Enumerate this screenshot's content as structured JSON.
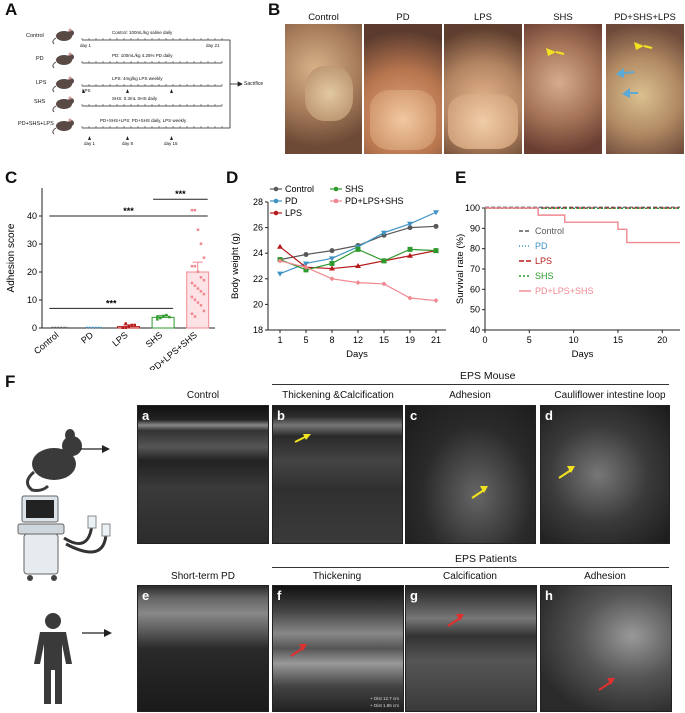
{
  "panels": {
    "A": "A",
    "B": "B",
    "C": "C",
    "D": "D",
    "E": "E",
    "F": "F"
  },
  "panelA": {
    "rows": [
      {
        "group": "Control",
        "protocol": "Control: 100mL/kg saline daily",
        "start": "day 1",
        "end": "day 21"
      },
      {
        "group": "PD",
        "protocol": "PD: 100mL/kg 4.25% PD daily"
      },
      {
        "group": "LPS",
        "protocol": "LPS: 4mg/kg LPS weekly",
        "note": "LPS"
      },
      {
        "group": "SHS",
        "protocol": "SHS: 0.3mL SHS daily"
      },
      {
        "group": "PD+SHS+LPS",
        "protocol": "PD+SHS+LPS: PD+SHS daily, LPS weekly",
        "days": [
          "day 1",
          "day 8",
          "day 15"
        ]
      }
    ],
    "endpoint": "Sacrifice"
  },
  "panelB": {
    "titles": [
      "Control",
      "PD",
      "LPS",
      "SHS",
      "PD+SHS+LPS"
    ]
  },
  "colors": {
    "control": "#595959",
    "pd": "#3f93c4",
    "lps": "#b71c1c",
    "shs": "#2e9a2e",
    "combo": "#f08891"
  },
  "chart_data": [
    {
      "type": "bar",
      "ylabel": "Adhesion score",
      "ylim": [
        0,
        50
      ],
      "yticks": [
        0,
        10,
        20,
        30,
        40
      ],
      "categories": [
        "Control",
        "PD",
        "LPS",
        "SHS",
        "PD+LPS+SHS"
      ],
      "values": [
        0,
        0,
        0.5,
        3.8,
        20
      ],
      "significance": [
        "***",
        "***",
        "***"
      ]
    },
    {
      "type": "line",
      "xlabel": "Days",
      "ylabel": "Body weight (g)",
      "x": [
        1,
        5,
        8,
        12,
        15,
        19,
        21
      ],
      "ylim": [
        18,
        28
      ],
      "yticks": [
        18,
        20,
        22,
        24,
        26,
        28
      ],
      "series": [
        {
          "name": "Control",
          "values": [
            23.5,
            23.9,
            24.2,
            24.6,
            25.4,
            26.0,
            26.1
          ]
        },
        {
          "name": "PD",
          "values": [
            22.4,
            23.2,
            23.6,
            24.5,
            25.6,
            26.3,
            27.2
          ]
        },
        {
          "name": "LPS",
          "values": [
            24.5,
            22.9,
            22.8,
            23.0,
            23.4,
            23.8,
            24.2
          ]
        },
        {
          "name": "SHS",
          "values": [
            23.5,
            22.7,
            23.2,
            24.3,
            23.4,
            24.3,
            24.2
          ]
        },
        {
          "name": "PD+LPS+SHS",
          "values": [
            23.4,
            22.9,
            22.0,
            21.7,
            21.6,
            20.5,
            20.3
          ]
        }
      ]
    },
    {
      "type": "line",
      "xlabel": "Days",
      "ylabel": "Survival rate (%)",
      "xlim": [
        0,
        22
      ],
      "xticks": [
        0,
        5,
        10,
        15,
        20
      ],
      "ylim": [
        40,
        100
      ],
      "yticks": [
        40,
        50,
        60,
        70,
        80,
        90,
        100
      ],
      "series": [
        {
          "name": "Control",
          "values": [
            100,
            100
          ]
        },
        {
          "name": "PD",
          "values": [
            100,
            100
          ]
        },
        {
          "name": "LPS",
          "values": [
            100,
            100
          ]
        },
        {
          "name": "SHS",
          "values": [
            100,
            100
          ]
        },
        {
          "name": "PD+LPS+SHS",
          "steps": [
            [
              0,
              100
            ],
            [
              6,
              100
            ],
            [
              6,
              96.5
            ],
            [
              9,
              96.5
            ],
            [
              9,
              93
            ],
            [
              15,
              93
            ],
            [
              15,
              89.5
            ],
            [
              16,
              89.5
            ],
            [
              16,
              83
            ],
            [
              22,
              83
            ]
          ]
        }
      ]
    }
  ],
  "panelF": {
    "mouse_header": "EPS Mouse",
    "patients_header": "EPS Patients",
    "mouse_images": [
      {
        "letter": "a",
        "title": "Control"
      },
      {
        "letter": "b",
        "title": "Thickening &Calcification"
      },
      {
        "letter": "c",
        "title": "Adhesion"
      },
      {
        "letter": "d",
        "title": "Cauliflower intestine loop"
      }
    ],
    "patient_images": [
      {
        "letter": "e",
        "title": "Short-term PD"
      },
      {
        "letter": "f",
        "title": "Thickening"
      },
      {
        "letter": "g",
        "title": "Calcification"
      },
      {
        "letter": "h",
        "title": "Adhesion"
      }
    ],
    "scan_readout": [
      "+ Dist 12.7 cm",
      "+ Dist 1.96 cm"
    ]
  }
}
